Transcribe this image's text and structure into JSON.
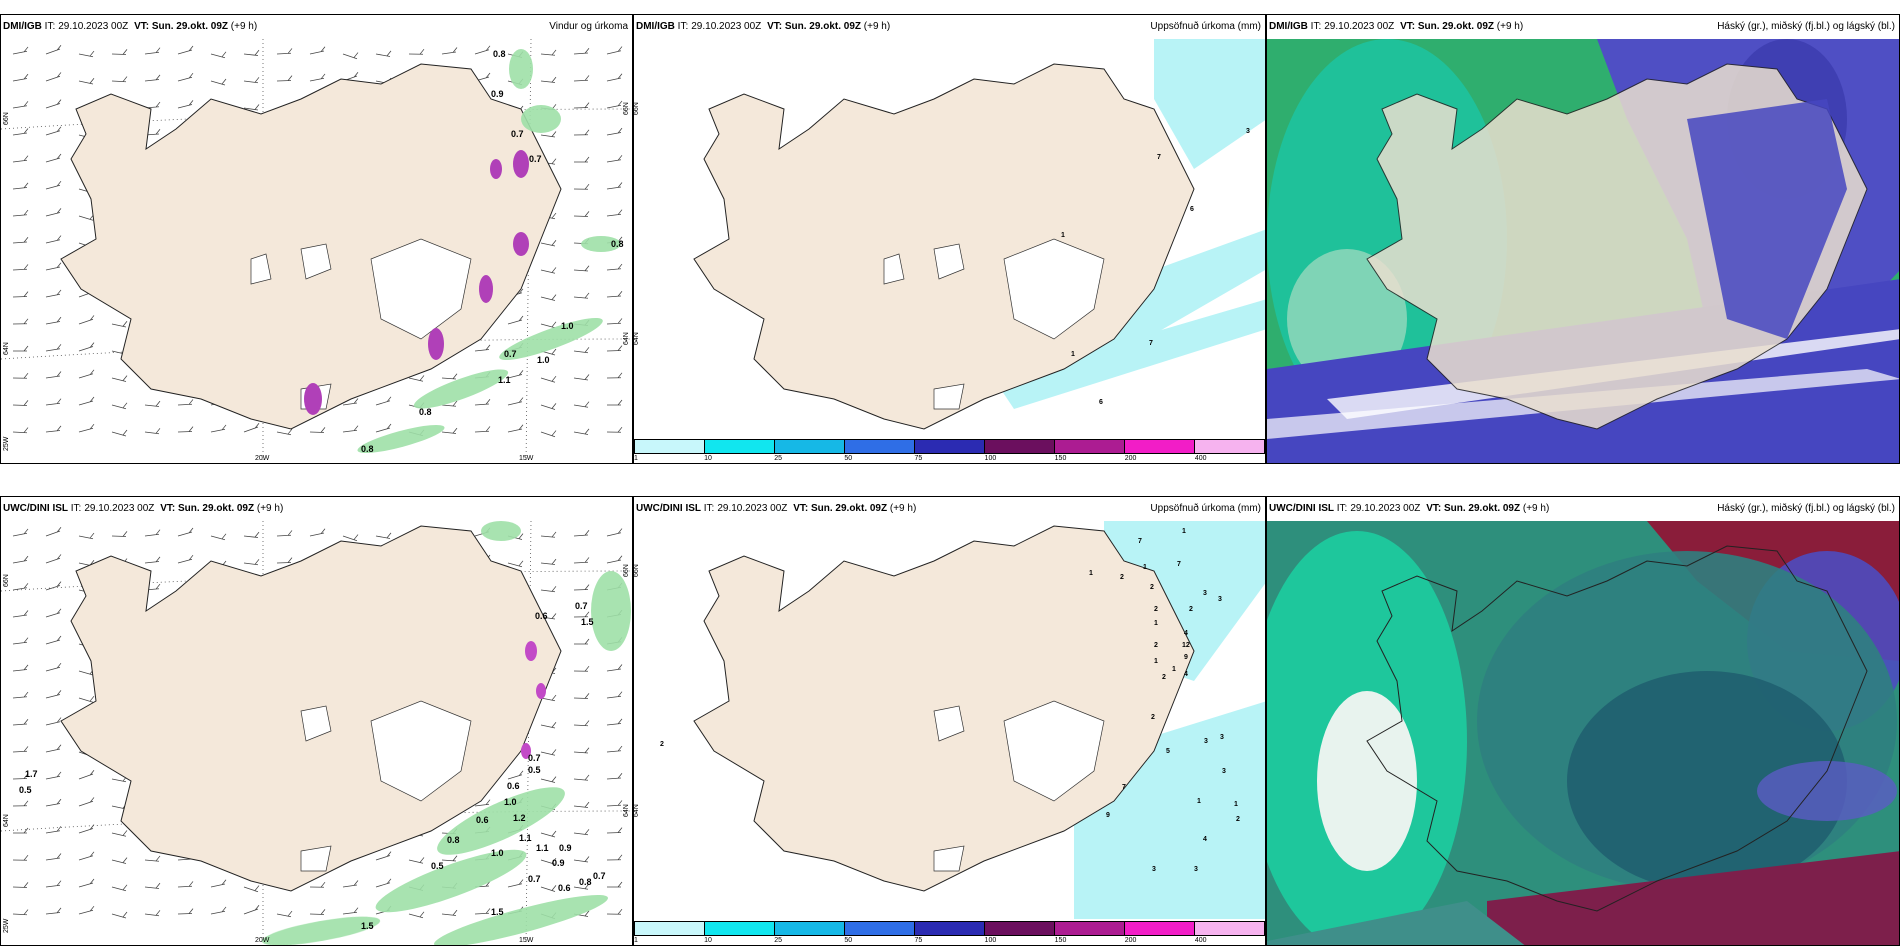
{
  "panels": [
    {
      "source": "DMI/IGB",
      "it_label": "IT:",
      "issue_time": "29.10.2023 00Z",
      "vt_label": "VT:",
      "valid_time": "Sun. 29.okt. 09Z",
      "lead": "(+9 h)",
      "product": "Vindur og úrkoma",
      "axis_labels": {
        "lat1": "66N",
        "lat2": "64N",
        "lon_left": "25W",
        "lon1": "20W",
        "lon2": "15W"
      },
      "values": [
        "0.8",
        "0.9",
        "0.7",
        "0.7",
        "0.8",
        "1.0",
        "0.7",
        "1.0",
        "1.1",
        "0.8",
        "0.8"
      ]
    },
    {
      "source": "DMI/IGB",
      "it_label": "IT:",
      "issue_time": "29.10.2023 00Z",
      "vt_label": "VT:",
      "valid_time": "Sun. 29.okt. 09Z",
      "lead": "(+9 h)",
      "product": "Uppsöfnuð úrkoma (mm)",
      "axis_labels": {
        "lat1": "66N",
        "lat2": "64N"
      },
      "values": [
        "3",
        "7",
        "6",
        "1",
        "1",
        "7",
        "6"
      ],
      "colorbar": [
        "1",
        "10",
        "25",
        "50",
        "75",
        "100",
        "150",
        "200",
        "400"
      ]
    },
    {
      "source": "DMI/IGB",
      "it_label": "IT:",
      "issue_time": "29.10.2023 00Z",
      "vt_label": "VT:",
      "valid_time": "Sun. 29.okt. 09Z",
      "lead": "(+9 h)",
      "product": "Háský (gr.), miðský (fj.bl.) og lágský (bl.)"
    },
    {
      "source": "UWC/DINI ISL",
      "it_label": "IT:",
      "issue_time": "29.10.2023 00Z",
      "vt_label": "VT:",
      "valid_time": "Sun. 29.okt. 09Z",
      "lead": "(+9 h)",
      "product": "",
      "axis_labels": {
        "lat1": "66N",
        "lat2": "64N",
        "lon_left": "25W",
        "lon1": "20W",
        "lon2": "15W"
      },
      "values": [
        "1.7",
        "0.5",
        "0.6",
        "0.7",
        "1.5",
        "0.7",
        "0.5",
        "0.6",
        "1.0",
        "1.2",
        "0.6",
        "0.8",
        "0.5",
        "1.0",
        "1.1",
        "0.9",
        "0.9",
        "0.7",
        "0.6",
        "0.8",
        "0.7",
        "1.5",
        "1.5",
        "1.1"
      ]
    },
    {
      "source": "UWC/DINI ISL",
      "it_label": "IT:",
      "issue_time": "29.10.2023 00Z",
      "vt_label": "VT:",
      "valid_time": "Sun. 29.okt. 09Z",
      "lead": "(+9 h)",
      "product": "Uppsöfnuð úrkoma (mm)",
      "axis_labels": {
        "lat1": "66N",
        "lat2": "64N"
      },
      "values": [
        "1",
        "7",
        "1",
        "7",
        "1",
        "2",
        "2",
        "3",
        "3",
        "2",
        "2",
        "4",
        "1",
        "12",
        "9",
        "2",
        "4",
        "2",
        "1",
        "1",
        "2",
        "3",
        "3",
        "5",
        "3",
        "7",
        "1",
        "1",
        "9",
        "2",
        "4",
        "3",
        "3",
        "2"
      ],
      "colorbar": [
        "1",
        "10",
        "25",
        "50",
        "75",
        "100",
        "150",
        "200",
        "400"
      ]
    },
    {
      "source": "UWC/DINI ISL",
      "it_label": "IT:",
      "issue_time": "29.10.2023 00Z",
      "vt_label": "VT:",
      "valid_time": "Sun. 29.okt. 09Z",
      "lead": "(+9 h)",
      "product": "Háský (gr.), miðský (fj.bl.) og lágský (bl.)"
    }
  ],
  "colors": {
    "land": "#f4e8da",
    "land_dark": "#ead6c4",
    "precip_light": "#b8f3f6",
    "green_light": "#bfe9c2",
    "green_mid": "#3fbf6c",
    "green_dark": "#0f7a35",
    "teal": "#14c38f",
    "cloud_blue": "#5a5ac8",
    "cloud_purple": "#3d2fae",
    "cloud_red": "#8a1d3a",
    "magenta": "#c24ac7"
  },
  "colorbar_colors": [
    "#c8f7fb",
    "#11e6ef",
    "#16b8e6",
    "#2f6ee6",
    "#2b2bb2",
    "#6b0f5e",
    "#ac1c92",
    "#f21dc7",
    "#f6b3ef"
  ]
}
